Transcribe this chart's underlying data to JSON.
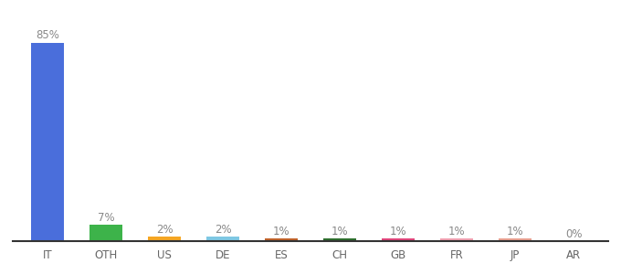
{
  "categories": [
    "IT",
    "OTH",
    "US",
    "DE",
    "ES",
    "CH",
    "GB",
    "FR",
    "JP",
    "AR"
  ],
  "values": [
    85,
    7,
    2,
    2,
    1,
    1,
    1,
    1,
    1,
    0
  ],
  "labels": [
    "85%",
    "7%",
    "2%",
    "2%",
    "1%",
    "1%",
    "1%",
    "1%",
    "1%",
    "0%"
  ],
  "bar_colors": [
    "#4a6edb",
    "#3db34a",
    "#f5a623",
    "#7ec8e3",
    "#c0622a",
    "#2d6e2d",
    "#e0457b",
    "#f0a0b0",
    "#e8a090",
    "#cccccc"
  ],
  "title_fontsize": 10,
  "label_fontsize": 8.5,
  "tick_fontsize": 8.5,
  "background_color": "#ffffff",
  "ylim": [
    0,
    95
  ],
  "label_color": "#888888",
  "tick_color": "#666666",
  "bar_width": 0.55
}
